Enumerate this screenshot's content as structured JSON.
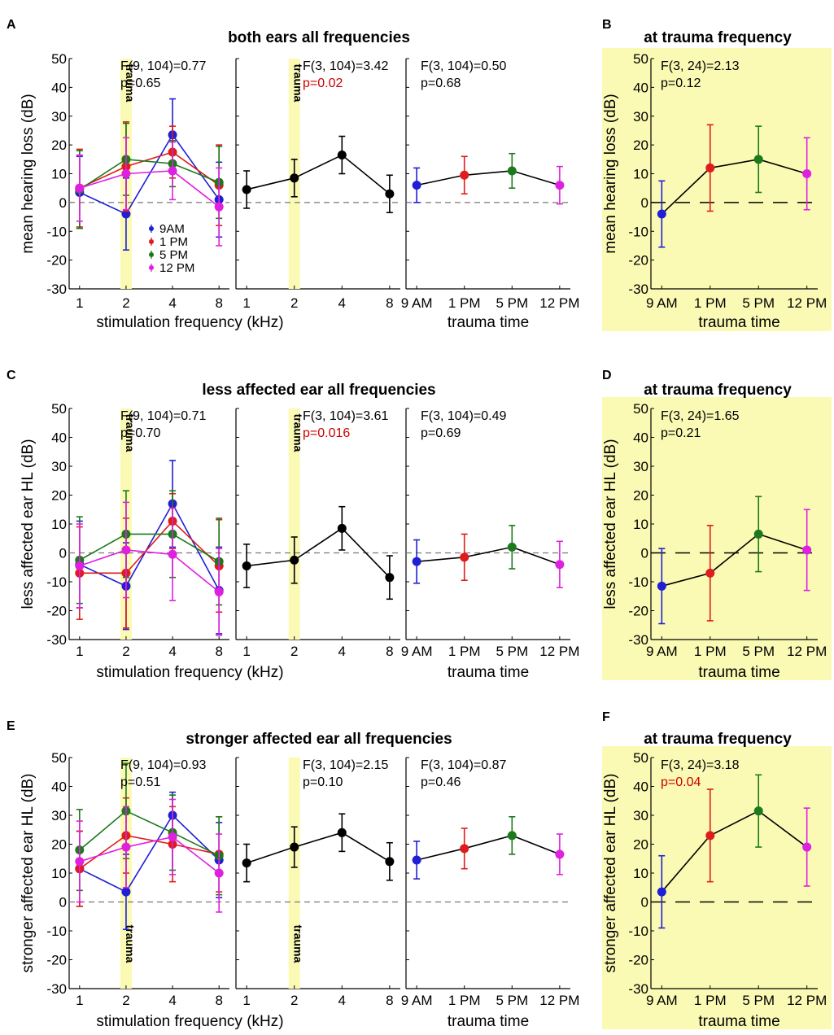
{
  "figure": {
    "panel_letters": [
      "A",
      "B",
      "C",
      "D",
      "E",
      "F"
    ],
    "colors": {
      "9AM": "#1f1fd6",
      "1PM": "#e01b1b",
      "5PM": "#1b7a1b",
      "12PM": "#e020e0",
      "black": "#000000",
      "highlight": "#fafab4",
      "sig": "#cc0000"
    }
  },
  "chart_data": [
    {
      "panel": "A",
      "type": "line",
      "title": "both ears all frequencies",
      "ylabel": "mean hearing loss (dB)",
      "ylim": [
        -30,
        50
      ],
      "yticks": [
        50,
        40,
        30,
        20,
        10,
        0,
        -10,
        -20,
        -30
      ],
      "subplots": [
        {
          "xlabel": "stimulation frequency (kHz)",
          "categories": [
            "1",
            "2",
            "4",
            "8"
          ],
          "trauma_label": "trauma",
          "trauma_category": "2",
          "trauma_label_pos": "top",
          "stat_lines": [
            "F(9, 104)=0.77",
            "p=0.65"
          ],
          "stat_sig": [
            false,
            false
          ],
          "legend": [
            "9AM",
            "1 PM",
            "5 PM",
            "12 PM"
          ],
          "series": [
            {
              "name": "9AM",
              "color_key": "9AM",
              "values": [
                3.5,
                -4,
                23.5,
                1
              ],
              "errors": [
                12.5,
                12.5,
                12.5,
                13
              ]
            },
            {
              "name": "1 PM",
              "color_key": "1PM",
              "values": [
                5,
                12.5,
                17.5,
                6
              ],
              "errors": [
                13.5,
                15.5,
                9,
                14
              ]
            },
            {
              "name": "5 PM",
              "color_key": "5PM",
              "values": [
                4.5,
                15,
                13.5,
                7
              ],
              "errors": [
                13.5,
                12.5,
                8,
                12.5
              ]
            },
            {
              "name": "12 PM",
              "color_key": "12PM",
              "values": [
                5,
                10,
                11,
                -1.5
              ],
              "errors": [
                11.5,
                12.5,
                10,
                13.5
              ]
            }
          ]
        },
        {
          "xlabel": "",
          "categories": [
            "1",
            "2",
            "4",
            "8"
          ],
          "trauma_label": "trauma",
          "trauma_category": "2",
          "trauma_label_pos": "top",
          "stat_lines": [
            "F(3, 104)=3.42",
            "p=0.02"
          ],
          "stat_sig": [
            false,
            true
          ],
          "series": [
            {
              "name": "all",
              "color_key": "black",
              "values": [
                4.5,
                8.5,
                16.5,
                3
              ],
              "errors": [
                6.5,
                6.5,
                6.5,
                6.5
              ]
            }
          ]
        },
        {
          "xlabel": "trauma time",
          "categories": [
            "9 AM",
            "1 PM",
            "5 PM",
            "12 PM"
          ],
          "stat_lines": [
            "F(3, 104)=0.50",
            "p=0.68"
          ],
          "stat_sig": [
            false,
            false
          ],
          "series": [
            {
              "name": "all",
              "color_keys": [
                "9AM",
                "1PM",
                "5PM",
                "12PM"
              ],
              "values": [
                6,
                9.5,
                11,
                6
              ],
              "errors": [
                6,
                6.5,
                6,
                6.5
              ]
            }
          ]
        }
      ]
    },
    {
      "panel": "B",
      "type": "line",
      "title": "at trauma frequency",
      "ylabel": "mean hearing loss (dB)",
      "xlabel": "trauma time",
      "ylim": [
        -30,
        50
      ],
      "yticks": [
        50,
        40,
        30,
        20,
        10,
        0,
        -10,
        -20,
        -30
      ],
      "categories": [
        "9 AM",
        "1 PM",
        "5 PM",
        "12 PM"
      ],
      "stat_lines": [
        "F(3, 24)=2.13",
        "p=0.12"
      ],
      "stat_sig": [
        false,
        false
      ],
      "series": [
        {
          "name": "trauma frequency",
          "color_keys": [
            "9AM",
            "1PM",
            "5PM",
            "12PM"
          ],
          "values": [
            -4,
            12,
            15,
            10
          ],
          "errors": [
            11.5,
            15,
            11.5,
            12.5
          ]
        }
      ]
    },
    {
      "panel": "C",
      "type": "line",
      "title": "less affected ear all frequencies",
      "ylabel": "less affected ear HL (dB)",
      "ylim": [
        -30,
        50
      ],
      "yticks": [
        50,
        40,
        30,
        20,
        10,
        0,
        -10,
        -20,
        -30
      ],
      "subplots": [
        {
          "xlabel": "stimulation frequency (kHz)",
          "categories": [
            "1",
            "2",
            "4",
            "8"
          ],
          "trauma_label": "trauma",
          "trauma_category": "2",
          "trauma_label_pos": "top",
          "stat_lines": [
            "F(9, 104)=0.71",
            "p=0.70"
          ],
          "stat_sig": [
            false,
            false
          ],
          "series": [
            {
              "name": "9AM",
              "color_key": "9AM",
              "values": [
                -4,
                -11.5,
                17,
                -13
              ],
              "errors": [
                15,
                15,
                15,
                15
              ]
            },
            {
              "name": "1 PM",
              "color_key": "1PM",
              "values": [
                -7,
                -7,
                11,
                -4.5
              ],
              "errors": [
                16,
                19,
                9.5,
                16
              ]
            },
            {
              "name": "5 PM",
              "color_key": "5PM",
              "values": [
                -2.5,
                6.5,
                6.5,
                -3
              ],
              "errors": [
                15,
                15,
                15,
                15
              ]
            },
            {
              "name": "12 PM",
              "color_key": "12PM",
              "values": [
                -4.5,
                1,
                -0.5,
                -13.5
              ],
              "errors": [
                14.5,
                16.5,
                16,
                15
              ]
            }
          ]
        },
        {
          "xlabel": "",
          "categories": [
            "1",
            "2",
            "4",
            "8"
          ],
          "trauma_label": "trauma",
          "trauma_category": "2",
          "trauma_label_pos": "top",
          "stat_lines": [
            "F(3, 104)=3.61",
            "p=0.016"
          ],
          "stat_sig": [
            false,
            true
          ],
          "series": [
            {
              "name": "all",
              "color_key": "black",
              "values": [
                -4.5,
                -2.5,
                8.5,
                -8.5
              ],
              "errors": [
                7.5,
                8,
                7.5,
                7.5
              ]
            }
          ]
        },
        {
          "xlabel": "trauma time",
          "categories": [
            "9 AM",
            "1 PM",
            "5 PM",
            "12 PM"
          ],
          "stat_lines": [
            "F(3, 104)=0.49",
            "p=0.69"
          ],
          "stat_sig": [
            false,
            false
          ],
          "series": [
            {
              "name": "all",
              "color_keys": [
                "9AM",
                "1PM",
                "5PM",
                "12PM"
              ],
              "values": [
                -3,
                -1.5,
                2,
                -4
              ],
              "errors": [
                7.5,
                8,
                7.5,
                8
              ]
            }
          ]
        }
      ]
    },
    {
      "panel": "D",
      "type": "line",
      "title": "at trauma frequency",
      "ylabel": "less affected ear HL (dB)",
      "xlabel": "trauma time",
      "ylim": [
        -30,
        50
      ],
      "yticks": [
        50,
        40,
        30,
        20,
        10,
        0,
        -10,
        -20,
        -30
      ],
      "categories": [
        "9 AM",
        "1 PM",
        "5 PM",
        "12 PM"
      ],
      "stat_lines": [
        "F(3, 24)=1.65",
        "p=0.21"
      ],
      "stat_sig": [
        false,
        false
      ],
      "series": [
        {
          "name": "trauma frequency",
          "color_keys": [
            "9AM",
            "1PM",
            "5PM",
            "12PM"
          ],
          "values": [
            -11.5,
            -7,
            6.5,
            1
          ],
          "errors": [
            13,
            16.5,
            13,
            14
          ]
        }
      ]
    },
    {
      "panel": "E",
      "type": "line",
      "title": "stronger affected ear all frequencies",
      "ylabel": "stronger affected ear HL (dB)",
      "ylim": [
        -30,
        50
      ],
      "yticks": [
        50,
        40,
        30,
        20,
        10,
        0,
        -10,
        -20,
        -30
      ],
      "subplots": [
        {
          "xlabel": "stimulation frequency (kHz)",
          "categories": [
            "1",
            "2",
            "4",
            "8"
          ],
          "trauma_label": "trauma",
          "trauma_category": "2",
          "trauma_label_pos": "bottom",
          "stat_lines": [
            "F(9, 104)=0.93",
            "p=0.51"
          ],
          "stat_sig": [
            false,
            false
          ],
          "series": [
            {
              "name": "9AM",
              "color_key": "9AM",
              "values": [
                11.5,
                3.5,
                30,
                14.5
              ],
              "errors": [
                13,
                13,
                8,
                13
              ]
            },
            {
              "name": "1 PM",
              "color_key": "1PM",
              "values": [
                11.5,
                23,
                20,
                16.5
              ],
              "errors": [
                13,
                13,
                13,
                13
              ]
            },
            {
              "name": "5 PM",
              "color_key": "5PM",
              "values": [
                18,
                31.5,
                24,
                16
              ],
              "errors": [
                14,
                16.5,
                13,
                13.5
              ]
            },
            {
              "name": "12 PM",
              "color_key": "12PM",
              "values": [
                14,
                19,
                22.5,
                10
              ],
              "errors": [
                14,
                14,
                13,
                13.5
              ]
            }
          ]
        },
        {
          "xlabel": "",
          "categories": [
            "1",
            "2",
            "4",
            "8"
          ],
          "trauma_label": "trauma",
          "trauma_category": "2",
          "trauma_label_pos": "bottom",
          "stat_lines": [
            "F(3, 104)=2.15",
            "p=0.10"
          ],
          "stat_sig": [
            false,
            false
          ],
          "series": [
            {
              "name": "all",
              "color_key": "black",
              "values": [
                13.5,
                19,
                24,
                14
              ],
              "errors": [
                6.5,
                7,
                6.5,
                6.5
              ]
            }
          ]
        },
        {
          "xlabel": "trauma time",
          "categories": [
            "9 AM",
            "1 PM",
            "5 PM",
            "12 PM"
          ],
          "stat_lines": [
            "F(3, 104)=0.87",
            "p=0.46"
          ],
          "stat_sig": [
            false,
            false
          ],
          "series": [
            {
              "name": "all",
              "color_keys": [
                "9AM",
                "1PM",
                "5PM",
                "12PM"
              ],
              "values": [
                14.5,
                18.5,
                23,
                16.5
              ],
              "errors": [
                6.5,
                7,
                6.5,
                7
              ]
            }
          ]
        }
      ]
    },
    {
      "panel": "F",
      "type": "line",
      "title": "at trauma frequency",
      "ylabel": "stronger affected ear HL (dB)",
      "xlabel": "trauma time",
      "ylim": [
        -30,
        50
      ],
      "yticks": [
        50,
        40,
        30,
        20,
        10,
        0,
        -10,
        -20,
        -30
      ],
      "categories": [
        "9 AM",
        "1 PM",
        "5 PM",
        "12 PM"
      ],
      "stat_lines": [
        "F(3, 24)=3.18",
        "p=0.04"
      ],
      "stat_sig": [
        false,
        true
      ],
      "series": [
        {
          "name": "trauma frequency",
          "color_keys": [
            "9AM",
            "1PM",
            "5PM",
            "12PM"
          ],
          "values": [
            3.5,
            23,
            31.5,
            19
          ],
          "errors": [
            12.5,
            16,
            12.5,
            13.5
          ]
        }
      ]
    }
  ]
}
